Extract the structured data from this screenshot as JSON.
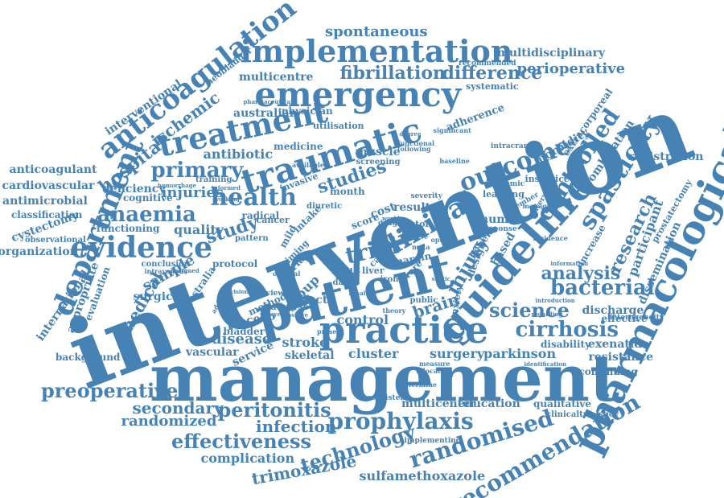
{
  "words": [
    {
      "id": "intervention",
      "text": "intervention"
    },
    {
      "id": "management",
      "text": "management"
    },
    {
      "id": "patient",
      "text": "patient"
    },
    {
      "id": "practice",
      "text": "practice"
    },
    {
      "id": "guideline",
      "text": "guideline"
    },
    {
      "id": "pharmacological",
      "text": "pharmacological"
    },
    {
      "id": "emergency",
      "text": "emergency"
    },
    {
      "id": "implementation",
      "text": "implementation"
    },
    {
      "id": "traumatic",
      "text": "traumatic"
    },
    {
      "id": "treatment",
      "text": "treatment"
    },
    {
      "id": "department",
      "text": "department"
    },
    {
      "id": "anticoagulation",
      "text": "anticoagulation"
    },
    {
      "id": "evidence",
      "text": "evidence"
    },
    {
      "id": "health",
      "text": "health"
    },
    {
      "id": "clinical",
      "text": "clinical"
    },
    {
      "id": "trial",
      "text": "trial"
    },
    {
      "id": "outcome",
      "text": "outcome"
    },
    {
      "id": "controlled",
      "text": "controlled"
    },
    {
      "id": "spasticity",
      "text": "spasticity"
    },
    {
      "id": "prophylaxis",
      "text": "prophylaxis"
    },
    {
      "id": "randomised",
      "text": "randomised"
    },
    {
      "id": "recommendation",
      "text": "recommendation"
    },
    {
      "id": "effectiveness",
      "text": "effectiveness"
    },
    {
      "id": "technology",
      "text": "technology"
    },
    {
      "id": "peritonitis",
      "text": "peritonitis"
    },
    {
      "id": "preoperative",
      "text": "preoperative"
    },
    {
      "id": "bacterial",
      "text": "bacterial"
    },
    {
      "id": "science",
      "text": "science"
    },
    {
      "id": "cirrhosis",
      "text": "cirrhosis"
    },
    {
      "id": "analysis",
      "text": "analysis"
    },
    {
      "id": "anaemia",
      "text": "anaemia"
    },
    {
      "id": "primary",
      "text": "primary"
    },
    {
      "id": "fibrillation",
      "text": "fibrillation"
    },
    {
      "id": "difference",
      "text": "difference"
    },
    {
      "id": "perioperative",
      "text": "perioperative"
    },
    {
      "id": "spontaneous",
      "text": "spontaneous"
    },
    {
      "id": "injury",
      "text": "injury"
    },
    {
      "id": "research",
      "text": "research"
    },
    {
      "id": "studies",
      "text": "studies"
    },
    {
      "id": "study",
      "text": "study"
    },
    {
      "id": "brain",
      "text": "brain"
    },
    {
      "id": "hospital",
      "text": "hospital"
    },
    {
      "id": "ischemic",
      "text": "ischemic"
    },
    {
      "id": "injuries",
      "text": "injuries"
    },
    {
      "id": "trimoxazole",
      "text": "trimoxazole"
    },
    {
      "id": "sulfamethoxazole",
      "text": "sulfamethoxazole"
    },
    {
      "id": "complication",
      "text": "complication"
    },
    {
      "id": "secondary",
      "text": "secondary"
    },
    {
      "id": "randomized",
      "text": "randomized"
    },
    {
      "id": "infection",
      "text": "infection"
    },
    {
      "id": "multidisciplinary",
      "text": "multidisciplinary"
    },
    {
      "id": "multicentre",
      "text": "multicentre"
    },
    {
      "id": "medical",
      "text": "medical"
    },
    {
      "id": "sample",
      "text": "sample"
    },
    {
      "id": "surgical",
      "text": "surgical"
    },
    {
      "id": "disease",
      "text": "disease"
    },
    {
      "id": "vascular",
      "text": "vascular"
    },
    {
      "id": "stroke",
      "text": "stroke"
    },
    {
      "id": "cluster",
      "text": "cluster"
    },
    {
      "id": "surgery",
      "text": "surgery"
    },
    {
      "id": "parkinson",
      "text": "parkinson"
    },
    {
      "id": "skeletal",
      "text": "skeletal"
    },
    {
      "id": "control",
      "text": "control"
    },
    {
      "id": "service",
      "text": "service"
    },
    {
      "id": "education",
      "text": "education"
    },
    {
      "id": "qualitative",
      "text": "qualitative"
    },
    {
      "id": "multicenter",
      "text": "multicenter"
    },
    {
      "id": "antibiotic",
      "text": "antibiotic"
    },
    {
      "id": "australian",
      "text": "australian"
    },
    {
      "id": "quality",
      "text": "quality"
    },
    {
      "id": "anticoagulant",
      "text": "anticoagulant"
    },
    {
      "id": "cardiovascular",
      "text": "cardiovascular"
    },
    {
      "id": "antimicrobial",
      "text": "antimicrobial"
    },
    {
      "id": "classification",
      "text": "classification"
    },
    {
      "id": "cystectomy",
      "text": "cystectomy"
    },
    {
      "id": "observational",
      "text": "observational"
    },
    {
      "id": "organization",
      "text": "organization"
    },
    {
      "id": "international",
      "text": "international"
    },
    {
      "id": "appropriate",
      "text": "appropriate"
    },
    {
      "id": "evaluation",
      "text": "evaluation"
    },
    {
      "id": "background",
      "text": "background"
    },
    {
      "id": "interventional",
      "text": "interventional"
    },
    {
      "id": "neobladder",
      "text": "neobladder"
    },
    {
      "id": "deficiency",
      "text": "deficiency"
    },
    {
      "id": "cognitive",
      "text": "cognitive"
    },
    {
      "id": "functioning",
      "text": "functioning"
    },
    {
      "id": "registration",
      "text": "registration"
    },
    {
      "id": "prostatectomy",
      "text": "prostatectomy"
    },
    {
      "id": "participant",
      "text": "participant"
    },
    {
      "id": "dissemination",
      "text": "dissemination"
    },
    {
      "id": "combination",
      "text": "combination"
    },
    {
      "id": "effective",
      "text": "effective"
    },
    {
      "id": "discharge",
      "text": "discharge"
    },
    {
      "id": "exenatide",
      "text": "exenatide"
    },
    {
      "id": "resistance",
      "text": "resistance"
    },
    {
      "id": "continuing",
      "text": "continuing"
    },
    {
      "id": "disability",
      "text": "disability"
    },
    {
      "id": "heterogeneity",
      "text": "heterogeneity"
    },
    {
      "id": "morbidity",
      "text": "morbidity"
    },
    {
      "id": "extracorporeal",
      "text": "extracorporeal"
    },
    {
      "id": "adherence",
      "text": "adherence"
    },
    {
      "id": "systematic",
      "text": "systematic"
    },
    {
      "id": "recommended",
      "text": "recommended"
    },
    {
      "id": "physician",
      "text": "physician"
    },
    {
      "id": "utilisation",
      "text": "utilisation"
    },
    {
      "id": "medicine",
      "text": "medicine"
    },
    {
      "id": "muscle",
      "text": "muscle"
    },
    {
      "id": "screening",
      "text": "screening"
    },
    {
      "id": "month",
      "text": "month"
    },
    {
      "id": "invasive",
      "text": "invasive"
    },
    {
      "id": "radical",
      "text": "radical"
    },
    {
      "id": "placebo",
      "text": "placebo"
    },
    {
      "id": "bladder",
      "text": "bladder"
    },
    {
      "id": "protocol",
      "text": "protocol"
    },
    {
      "id": "method",
      "text": "method"
    },
    {
      "id": "group",
      "text": "group"
    },
    {
      "id": "effect",
      "text": "effect"
    },
    {
      "id": "adverse",
      "text": "adverse"
    },
    {
      "id": "result",
      "text": "result"
    },
    {
      "id": "cost",
      "text": "cost"
    },
    {
      "id": "human",
      "text": "human"
    },
    {
      "id": "based",
      "text": "based"
    },
    {
      "id": "benefit",
      "text": "benefit"
    },
    {
      "id": "design",
      "text": "design"
    },
    {
      "id": "learning",
      "text": "learning"
    },
    {
      "id": "inservice",
      "text": "inservice"
    },
    {
      "id": "increase",
      "text": "increase"
    },
    {
      "id": "clinicaltrialsgov",
      "text": "clinicaltrialsgov"
    },
    {
      "id": "implementing",
      "text": "implementing"
    },
    {
      "id": "inconsistent",
      "text": "inconsistent"
    },
    {
      "id": "australia",
      "text": "australia"
    },
    {
      "id": "pattern",
      "text": "pattern"
    },
    {
      "id": "training",
      "text": "training"
    },
    {
      "id": "score",
      "text": "score"
    },
    {
      "id": "margin",
      "text": "margin"
    },
    {
      "id": "adult",
      "text": "adult"
    },
    {
      "id": "liver",
      "text": "liver"
    },
    {
      "id": "iron",
      "text": "iron"
    },
    {
      "id": "atrial",
      "text": "atrial"
    },
    {
      "id": "timing",
      "text": "timing"
    },
    {
      "id": "cancer",
      "text": "cancer"
    },
    {
      "id": "intake",
      "text": "intake"
    },
    {
      "id": "factor",
      "text": "factor"
    },
    {
      "id": "time",
      "text": "time"
    },
    {
      "id": "care",
      "text": "care"
    },
    {
      "id": "rare",
      "text": "rare"
    },
    {
      "id": "data",
      "text": "data"
    },
    {
      "id": "public",
      "text": "public"
    },
    {
      "id": "anxiety",
      "text": "anxiety"
    },
    {
      "id": "present",
      "text": "present"
    },
    {
      "id": "theory",
      "text": "theory"
    },
    {
      "id": "measure",
      "text": "measure"
    },
    {
      "id": "allocation",
      "text": "allocation"
    },
    {
      "id": "determine",
      "text": "determine"
    },
    {
      "id": "conclusion",
      "text": "conclusion"
    },
    {
      "id": "intravenous",
      "text": "intravenous"
    },
    {
      "id": "pharmaceutical",
      "text": "pharmaceutical"
    },
    {
      "id": "economic",
      "text": "economic"
    },
    {
      "id": "severity",
      "text": "severity"
    },
    {
      "id": "significant",
      "text": "significant"
    },
    {
      "id": "diuretic",
      "text": "diuretic"
    },
    {
      "id": "review",
      "text": "review"
    },
    {
      "id": "identification",
      "text": "identification"
    },
    {
      "id": "incidence",
      "text": "incidence"
    },
    {
      "id": "information",
      "text": "information"
    },
    {
      "id": "response",
      "text": "response"
    },
    {
      "id": "managing",
      "text": "managing"
    },
    {
      "id": "optimal",
      "text": "optimal"
    },
    {
      "id": "mild",
      "text": "mild"
    },
    {
      "id": "curve",
      "text": "curve"
    },
    {
      "id": "meta",
      "text": "meta"
    },
    {
      "id": "available",
      "text": "available"
    },
    {
      "id": "functional",
      "text": "functional"
    },
    {
      "id": "following",
      "text": "following"
    },
    {
      "id": "baseline",
      "text": "baseline"
    },
    {
      "id": "intracranial",
      "text": "intracranial"
    },
    {
      "id": "diversion",
      "text": "diversion"
    },
    {
      "id": "december",
      "text": "december"
    },
    {
      "id": "hemorrhage",
      "text": "hemorrhage"
    },
    {
      "id": "informed",
      "text": "informed"
    },
    {
      "id": "working",
      "text": "working"
    },
    {
      "id": "positive",
      "text": "positive"
    },
    {
      "id": "delayed",
      "text": "delayed"
    },
    {
      "id": "nasal",
      "text": "nasal"
    },
    {
      "id": "option",
      "text": "option"
    },
    {
      "id": "drug",
      "text": "drug"
    },
    {
      "id": "additional",
      "text": "additional"
    },
    {
      "id": "provision",
      "text": "provision"
    },
    {
      "id": "designed",
      "text": "designed"
    },
    {
      "id": "septic",
      "text": "septic"
    },
    {
      "id": "world",
      "text": "world"
    },
    {
      "id": "regarding",
      "text": "regarding"
    },
    {
      "id": "introduction",
      "text": "introduction"
    },
    {
      "id": "degree",
      "text": "degree"
    }
  ]
}
